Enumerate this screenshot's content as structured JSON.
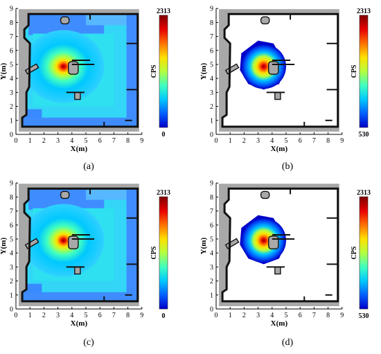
{
  "chart_data": [
    {
      "type": "heatmap",
      "panel_label": "(a)",
      "xlabel": "X(m)",
      "ylabel": "Y(m)",
      "xlim": [
        0,
        9
      ],
      "ylim": [
        0,
        9
      ],
      "x_ticks": [
        0,
        1,
        2,
        3,
        4,
        5,
        6,
        7,
        8,
        9
      ],
      "y_ticks": [
        0,
        1,
        2,
        3,
        4,
        5,
        6,
        7,
        8,
        9
      ],
      "colorbar": {
        "label": "CPS",
        "max": 2313,
        "min": 0,
        "max_label": "2313",
        "min_label": "0"
      },
      "source": {
        "x": 3.4,
        "y": 4.85,
        "value": 2313
      },
      "values_below_min_hidden": false
    },
    {
      "type": "heatmap",
      "panel_label": "(b)",
      "xlabel": "X(m)",
      "ylabel": "Y(m)",
      "xlim": [
        0,
        9
      ],
      "ylim": [
        0,
        9
      ],
      "x_ticks": [
        0,
        1,
        2,
        3,
        4,
        5,
        6,
        7,
        8,
        9
      ],
      "y_ticks": [
        0,
        1,
        2,
        3,
        4,
        5,
        6,
        7,
        8,
        9
      ],
      "colorbar": {
        "label": "CPS",
        "max": 2313,
        "min": 530,
        "max_label": "2313",
        "min_label": "530"
      },
      "source": {
        "x": 3.4,
        "y": 4.85,
        "value": 2313
      },
      "values_below_min_hidden": true
    },
    {
      "type": "heatmap",
      "panel_label": "(c)",
      "xlabel": "X(m)",
      "ylabel": "Y(m)",
      "xlim": [
        0,
        9
      ],
      "ylim": [
        0,
        9
      ],
      "x_ticks": [
        0,
        1,
        2,
        3,
        4,
        5,
        6,
        7,
        8,
        9
      ],
      "y_ticks": [
        0,
        1,
        2,
        3,
        4,
        5,
        6,
        7,
        8,
        9
      ],
      "colorbar": {
        "label": "CPS",
        "max": 2313,
        "min": 0,
        "max_label": "2313",
        "min_label": "0"
      },
      "source": {
        "x": 3.4,
        "y": 4.9,
        "value": 2313
      },
      "values_below_min_hidden": false
    },
    {
      "type": "heatmap",
      "panel_label": "(d)",
      "xlabel": "X(m)",
      "ylabel": "Y(m)",
      "xlim": [
        0,
        9
      ],
      "ylim": [
        0,
        9
      ],
      "x_ticks": [
        0,
        1,
        2,
        3,
        4,
        5,
        6,
        7,
        8,
        9
      ],
      "y_ticks": [
        0,
        1,
        2,
        3,
        4,
        5,
        6,
        7,
        8,
        9
      ],
      "colorbar": {
        "label": "CPS",
        "max": 2313,
        "min": 530,
        "max_label": "2313",
        "min_label": "530"
      },
      "source": {
        "x": 3.4,
        "y": 4.9,
        "value": 2313
      },
      "values_below_min_hidden": true
    }
  ],
  "colors": {
    "obstacle": "#a8a8a8",
    "wall": "#111111",
    "free": "#ffffff",
    "colormap": [
      "#0000c8",
      "#0060ff",
      "#00c8ff",
      "#40ffc0",
      "#b4ff40",
      "#ffe000",
      "#ff7000",
      "#e80000",
      "#800000"
    ]
  }
}
